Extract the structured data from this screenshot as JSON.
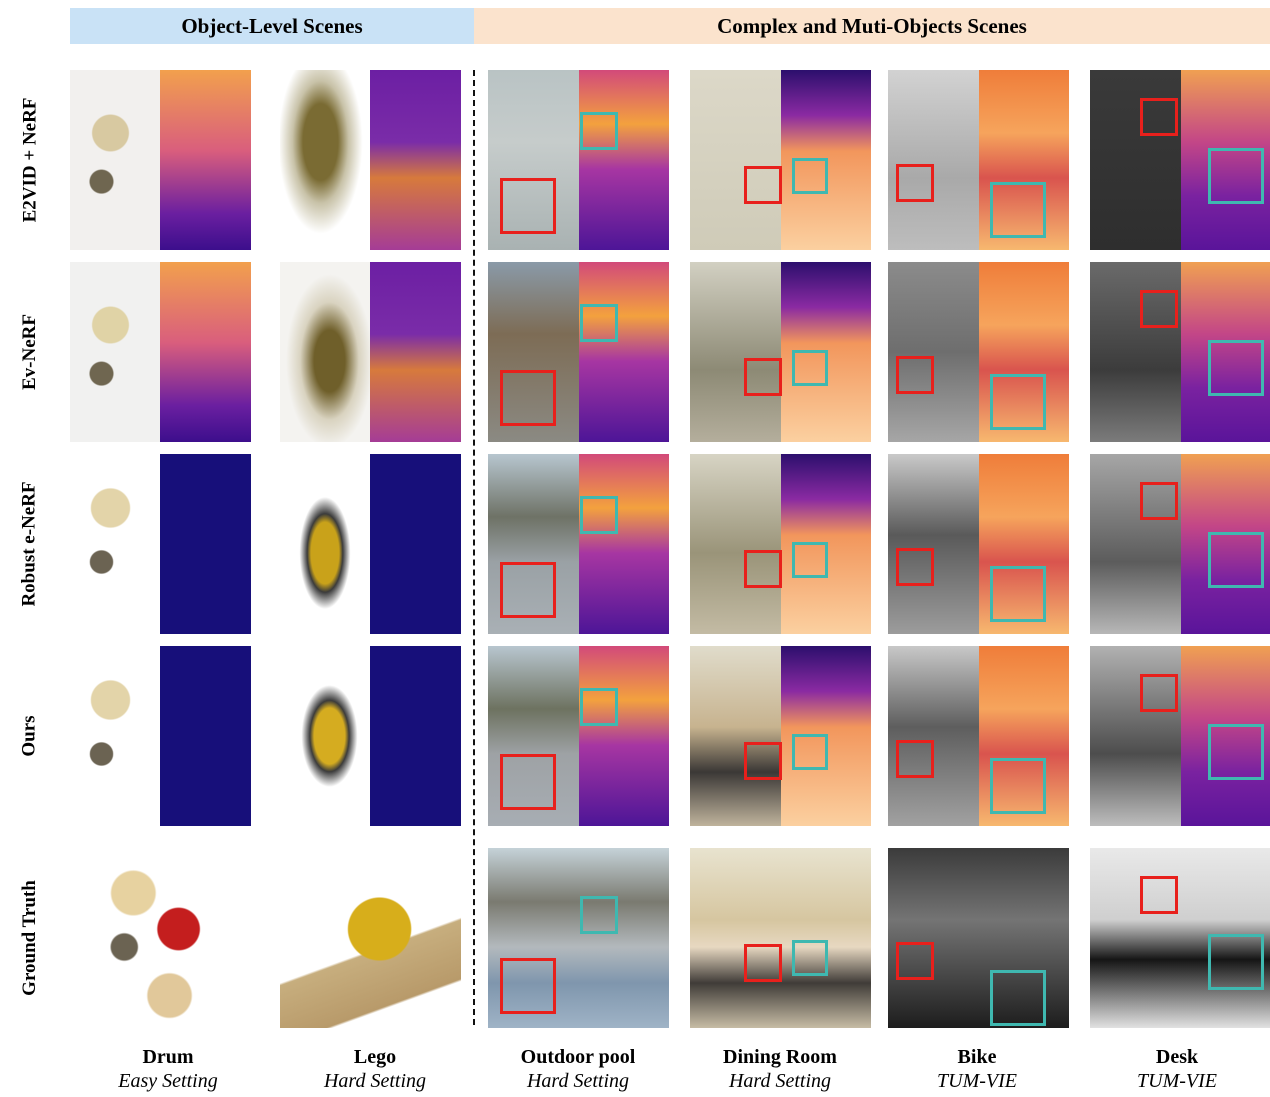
{
  "headers": {
    "object_level": "Object-Level Scenes",
    "complex": "Complex and Muti-Objects Scenes"
  },
  "rows": [
    {
      "label": "E2VID + NeRF"
    },
    {
      "label": "Ev-NeRF"
    },
    {
      "label": "Robust e-NeRF"
    },
    {
      "label": "Ours"
    },
    {
      "label": "Ground Truth"
    }
  ],
  "columns": [
    {
      "title": "Drum",
      "setting": "Easy Setting"
    },
    {
      "title": "Lego",
      "setting": "Hard Setting"
    },
    {
      "title": "Outdoor pool",
      "setting": "Hard Setting"
    },
    {
      "title": "Dining Room",
      "setting": "Hard Setting"
    },
    {
      "title": "Bike",
      "setting": "TUM-VIE"
    },
    {
      "title": "Desk",
      "setting": "TUM-VIE"
    }
  ],
  "colors": {
    "highlight_red": "#e8201c",
    "highlight_teal": "#3fb8b0",
    "header_blue": "#c9e2f6",
    "header_orange": "#fbe3cd"
  }
}
